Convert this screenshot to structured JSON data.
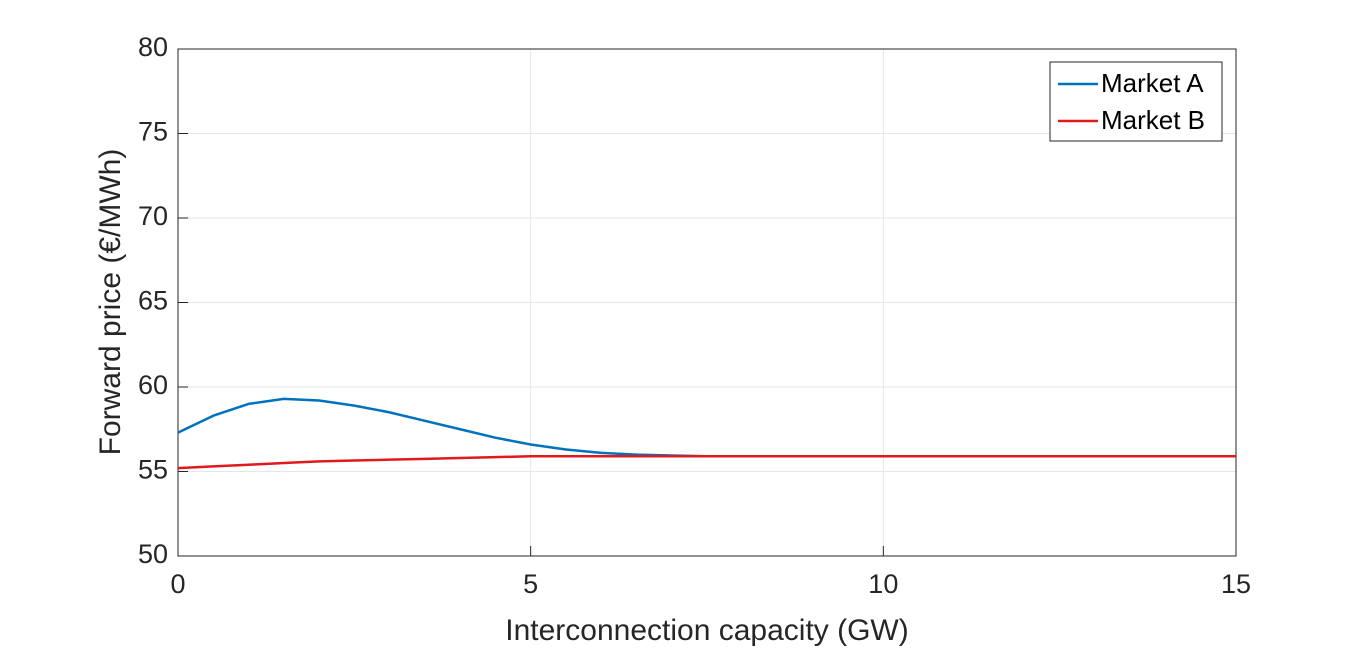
{
  "chart_data": {
    "type": "line",
    "xlabel": "Interconnection capacity (GW)",
    "ylabel": "Forward price (€/MWh)",
    "x": [
      0,
      0.5,
      1,
      1.5,
      2,
      2.5,
      3,
      3.5,
      4,
      4.5,
      5,
      5.5,
      6,
      6.5,
      7,
      7.5,
      8,
      8.5,
      9,
      9.5,
      10,
      10.5,
      11,
      11.5,
      12,
      12.5,
      13,
      13.5,
      14,
      14.5,
      15
    ],
    "series": [
      {
        "name": "Market A",
        "color": "#0072bd",
        "values": [
          57.3,
          58.3,
          59.0,
          59.3,
          59.2,
          58.9,
          58.5,
          58.0,
          57.5,
          57.0,
          56.6,
          56.3,
          56.1,
          56.0,
          55.95,
          55.9,
          55.9,
          55.9,
          55.9,
          55.9,
          55.9,
          55.9,
          55.9,
          55.9,
          55.9,
          55.9,
          55.9,
          55.9,
          55.9,
          55.9,
          55.9
        ]
      },
      {
        "name": "Market B",
        "color": "#e0191b",
        "values": [
          55.2,
          55.3,
          55.4,
          55.5,
          55.6,
          55.65,
          55.7,
          55.75,
          55.8,
          55.85,
          55.9,
          55.9,
          55.9,
          55.9,
          55.9,
          55.9,
          55.9,
          55.9,
          55.9,
          55.9,
          55.9,
          55.9,
          55.9,
          55.9,
          55.9,
          55.9,
          55.9,
          55.9,
          55.9,
          55.9,
          55.9
        ]
      }
    ],
    "xlim": [
      0,
      15
    ],
    "xticks": [
      0,
      5,
      10,
      15
    ],
    "ylim": [
      50,
      80
    ],
    "yticks": [
      50,
      55,
      60,
      65,
      70,
      75,
      80
    ],
    "grid": true,
    "legend": "upper-right"
  }
}
